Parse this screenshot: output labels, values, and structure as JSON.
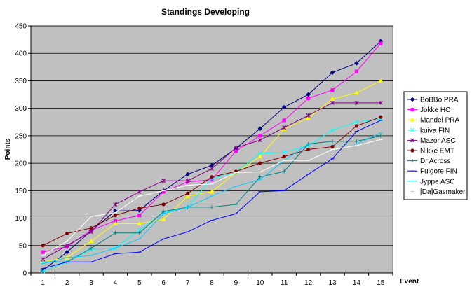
{
  "chart_data": {
    "type": "line",
    "title": "Standings Developing",
    "xlabel": "Event",
    "ylabel": "Points",
    "ylim": [
      0,
      450
    ],
    "y_ticks": [
      0,
      50,
      100,
      150,
      200,
      250,
      300,
      350,
      400,
      450
    ],
    "x": [
      1,
      2,
      3,
      4,
      5,
      6,
      7,
      8,
      9,
      10,
      11,
      12,
      13,
      14,
      15
    ],
    "grid": true,
    "legend_position": "right",
    "plot_background": "#c0c0c0",
    "series": [
      {
        "name": "BoBBo PRA",
        "color": "#000080",
        "marker": "diamond",
        "values": [
          5,
          38,
          77,
          113,
          114,
          150,
          180,
          196,
          227,
          263,
          302,
          325,
          365,
          382,
          422
        ]
      },
      {
        "name": "Jokke HC",
        "color": "#ff00ff",
        "marker": "square",
        "values": [
          38,
          48,
          78,
          95,
          105,
          148,
          166,
          170,
          222,
          250,
          278,
          318,
          333,
          367,
          418
        ]
      },
      {
        "name": "Mandel PRA",
        "color": "#ffff00",
        "marker": "triangle",
        "values": [
          20,
          28,
          58,
          90,
          90,
          98,
          140,
          148,
          183,
          212,
          262,
          282,
          317,
          328,
          350
        ]
      },
      {
        "name": "kuiva FIN",
        "color": "#00ffff",
        "marker": "x",
        "values": [
          3,
          20,
          43,
          45,
          78,
          110,
          120,
          172,
          183,
          218,
          220,
          232,
          260,
          275,
          280
        ]
      },
      {
        "name": "Mazor ASC",
        "color": "#800080",
        "marker": "star",
        "values": [
          25,
          50,
          75,
          125,
          148,
          168,
          168,
          190,
          228,
          242,
          265,
          287,
          310,
          310,
          310
        ]
      },
      {
        "name": "Nikke EMT",
        "color": "#800000",
        "marker": "circle",
        "values": [
          50,
          72,
          82,
          105,
          118,
          125,
          145,
          175,
          185,
          200,
          212,
          225,
          230,
          268,
          284
        ]
      },
      {
        "name": "Dr Across",
        "color": "#008080",
        "marker": "plus",
        "values": [
          20,
          20,
          45,
          73,
          73,
          112,
          120,
          120,
          125,
          175,
          185,
          235,
          240,
          240,
          250
        ]
      },
      {
        "name": "Fulgore FIN",
        "color": "#0000ff",
        "marker": "dash",
        "values": [
          8,
          20,
          20,
          35,
          38,
          62,
          75,
          96,
          108,
          148,
          150,
          180,
          208,
          258,
          278
        ]
      },
      {
        "name": "Jyppe ASC",
        "color": "#00ccff",
        "marker": "dash",
        "values": [
          17,
          28,
          32,
          45,
          62,
          108,
          120,
          140,
          158,
          170,
          205,
          235,
          235,
          235,
          255
        ]
      },
      {
        "name": "[Da]Gasmaker",
        "color": "#ffffff",
        "marker": "dash",
        "values": [
          32,
          58,
          103,
          110,
          140,
          150,
          160,
          162,
          183,
          184,
          205,
          205,
          225,
          232,
          243
        ]
      }
    ]
  }
}
